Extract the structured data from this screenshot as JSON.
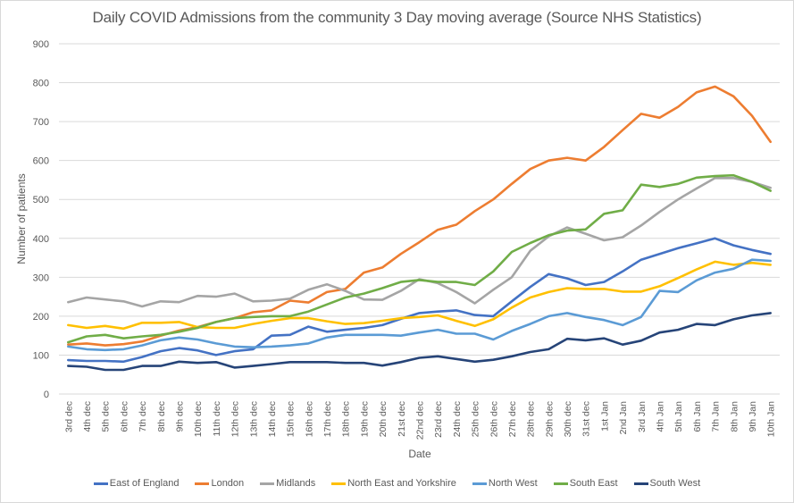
{
  "chart_data": {
    "type": "line",
    "title": "Daily COVID Admissions from the community 3 Day moving average (Source NHS Statistics)",
    "xlabel": "Date",
    "ylabel": "Number of patients",
    "ylim": [
      0,
      900
    ],
    "yticks": [
      0,
      100,
      200,
      300,
      400,
      500,
      600,
      700,
      800,
      900
    ],
    "grid": true,
    "legend_position": "bottom",
    "categories": [
      "3rd dec",
      "4th dec",
      "5th dec",
      "6th dec",
      "7th dec",
      "8th dec",
      "9th dec",
      "10th dec",
      "11th dec",
      "12th dec",
      "13th dec",
      "14th dec",
      "15th dec",
      "16th dec",
      "17th dec",
      "18th dec",
      "19th dec",
      "20th dec",
      "21st dec",
      "22nd dec",
      "23rd dec",
      "24th dec",
      "25th dec",
      "26th dec",
      "27th dec",
      "28th dec",
      "29th dec",
      "30th dec",
      "31st dec",
      "1st Jan",
      "2nd Jan",
      "3rd Jan",
      "4th Jan",
      "5th Jan",
      "6th Jan",
      "7th Jan",
      "8th Jan",
      "9th Jan",
      "10th Jan"
    ],
    "series": [
      {
        "name": "East of England",
        "color": "#4472c4",
        "values": [
          87,
          85,
          85,
          83,
          95,
          110,
          118,
          112,
          100,
          110,
          115,
          150,
          152,
          173,
          160,
          165,
          170,
          177,
          193,
          208,
          212,
          215,
          203,
          200,
          238,
          275,
          308,
          297,
          280,
          288,
          315,
          345,
          360,
          375,
          387,
          400,
          382,
          370,
          360
        ]
      },
      {
        "name": "London",
        "color": "#ed7d31",
        "values": [
          127,
          130,
          125,
          128,
          135,
          150,
          163,
          172,
          185,
          195,
          210,
          215,
          240,
          235,
          262,
          270,
          312,
          325,
          360,
          390,
          422,
          435,
          470,
          500,
          540,
          578,
          600,
          607,
          600,
          635,
          678,
          720,
          710,
          738,
          775,
          790,
          765,
          715,
          648
        ]
      },
      {
        "name": "Midlands",
        "color": "#a5a5a5",
        "values": [
          236,
          248,
          243,
          238,
          225,
          238,
          236,
          252,
          250,
          258,
          238,
          240,
          245,
          268,
          282,
          265,
          243,
          242,
          265,
          295,
          285,
          262,
          233,
          268,
          300,
          368,
          405,
          428,
          412,
          395,
          403,
          433,
          468,
          500,
          528,
          555,
          555,
          545,
          530
        ]
      },
      {
        "name": "North East and Yorkshire",
        "color": "#ffc000",
        "values": [
          177,
          170,
          175,
          168,
          183,
          183,
          185,
          172,
          170,
          170,
          180,
          188,
          195,
          195,
          187,
          180,
          182,
          188,
          195,
          198,
          202,
          188,
          175,
          192,
          222,
          248,
          262,
          272,
          270,
          270,
          263,
          263,
          277,
          298,
          320,
          340,
          332,
          337,
          332
        ]
      },
      {
        "name": "North West",
        "color": "#5b9bd5",
        "values": [
          122,
          115,
          113,
          115,
          125,
          138,
          145,
          140,
          130,
          122,
          120,
          122,
          125,
          130,
          145,
          152,
          152,
          152,
          150,
          158,
          165,
          155,
          155,
          140,
          162,
          180,
          200,
          208,
          198,
          190,
          177,
          198,
          265,
          262,
          292,
          312,
          322,
          345,
          342
        ]
      },
      {
        "name": "South East",
        "color": "#70ad47",
        "values": [
          133,
          148,
          152,
          143,
          148,
          152,
          160,
          170,
          185,
          195,
          198,
          200,
          200,
          212,
          230,
          248,
          258,
          272,
          288,
          293,
          288,
          288,
          280,
          315,
          365,
          388,
          408,
          420,
          423,
          463,
          472,
          538,
          532,
          540,
          556,
          560,
          562,
          545,
          522
        ]
      },
      {
        "name": "South West",
        "color": "#264478",
        "values": [
          72,
          70,
          62,
          62,
          72,
          72,
          83,
          80,
          82,
          68,
          72,
          77,
          82,
          82,
          82,
          80,
          80,
          73,
          82,
          93,
          97,
          90,
          83,
          88,
          97,
          108,
          115,
          142,
          138,
          143,
          127,
          137,
          158,
          165,
          180,
          177,
          192,
          202,
          208
        ]
      }
    ]
  }
}
